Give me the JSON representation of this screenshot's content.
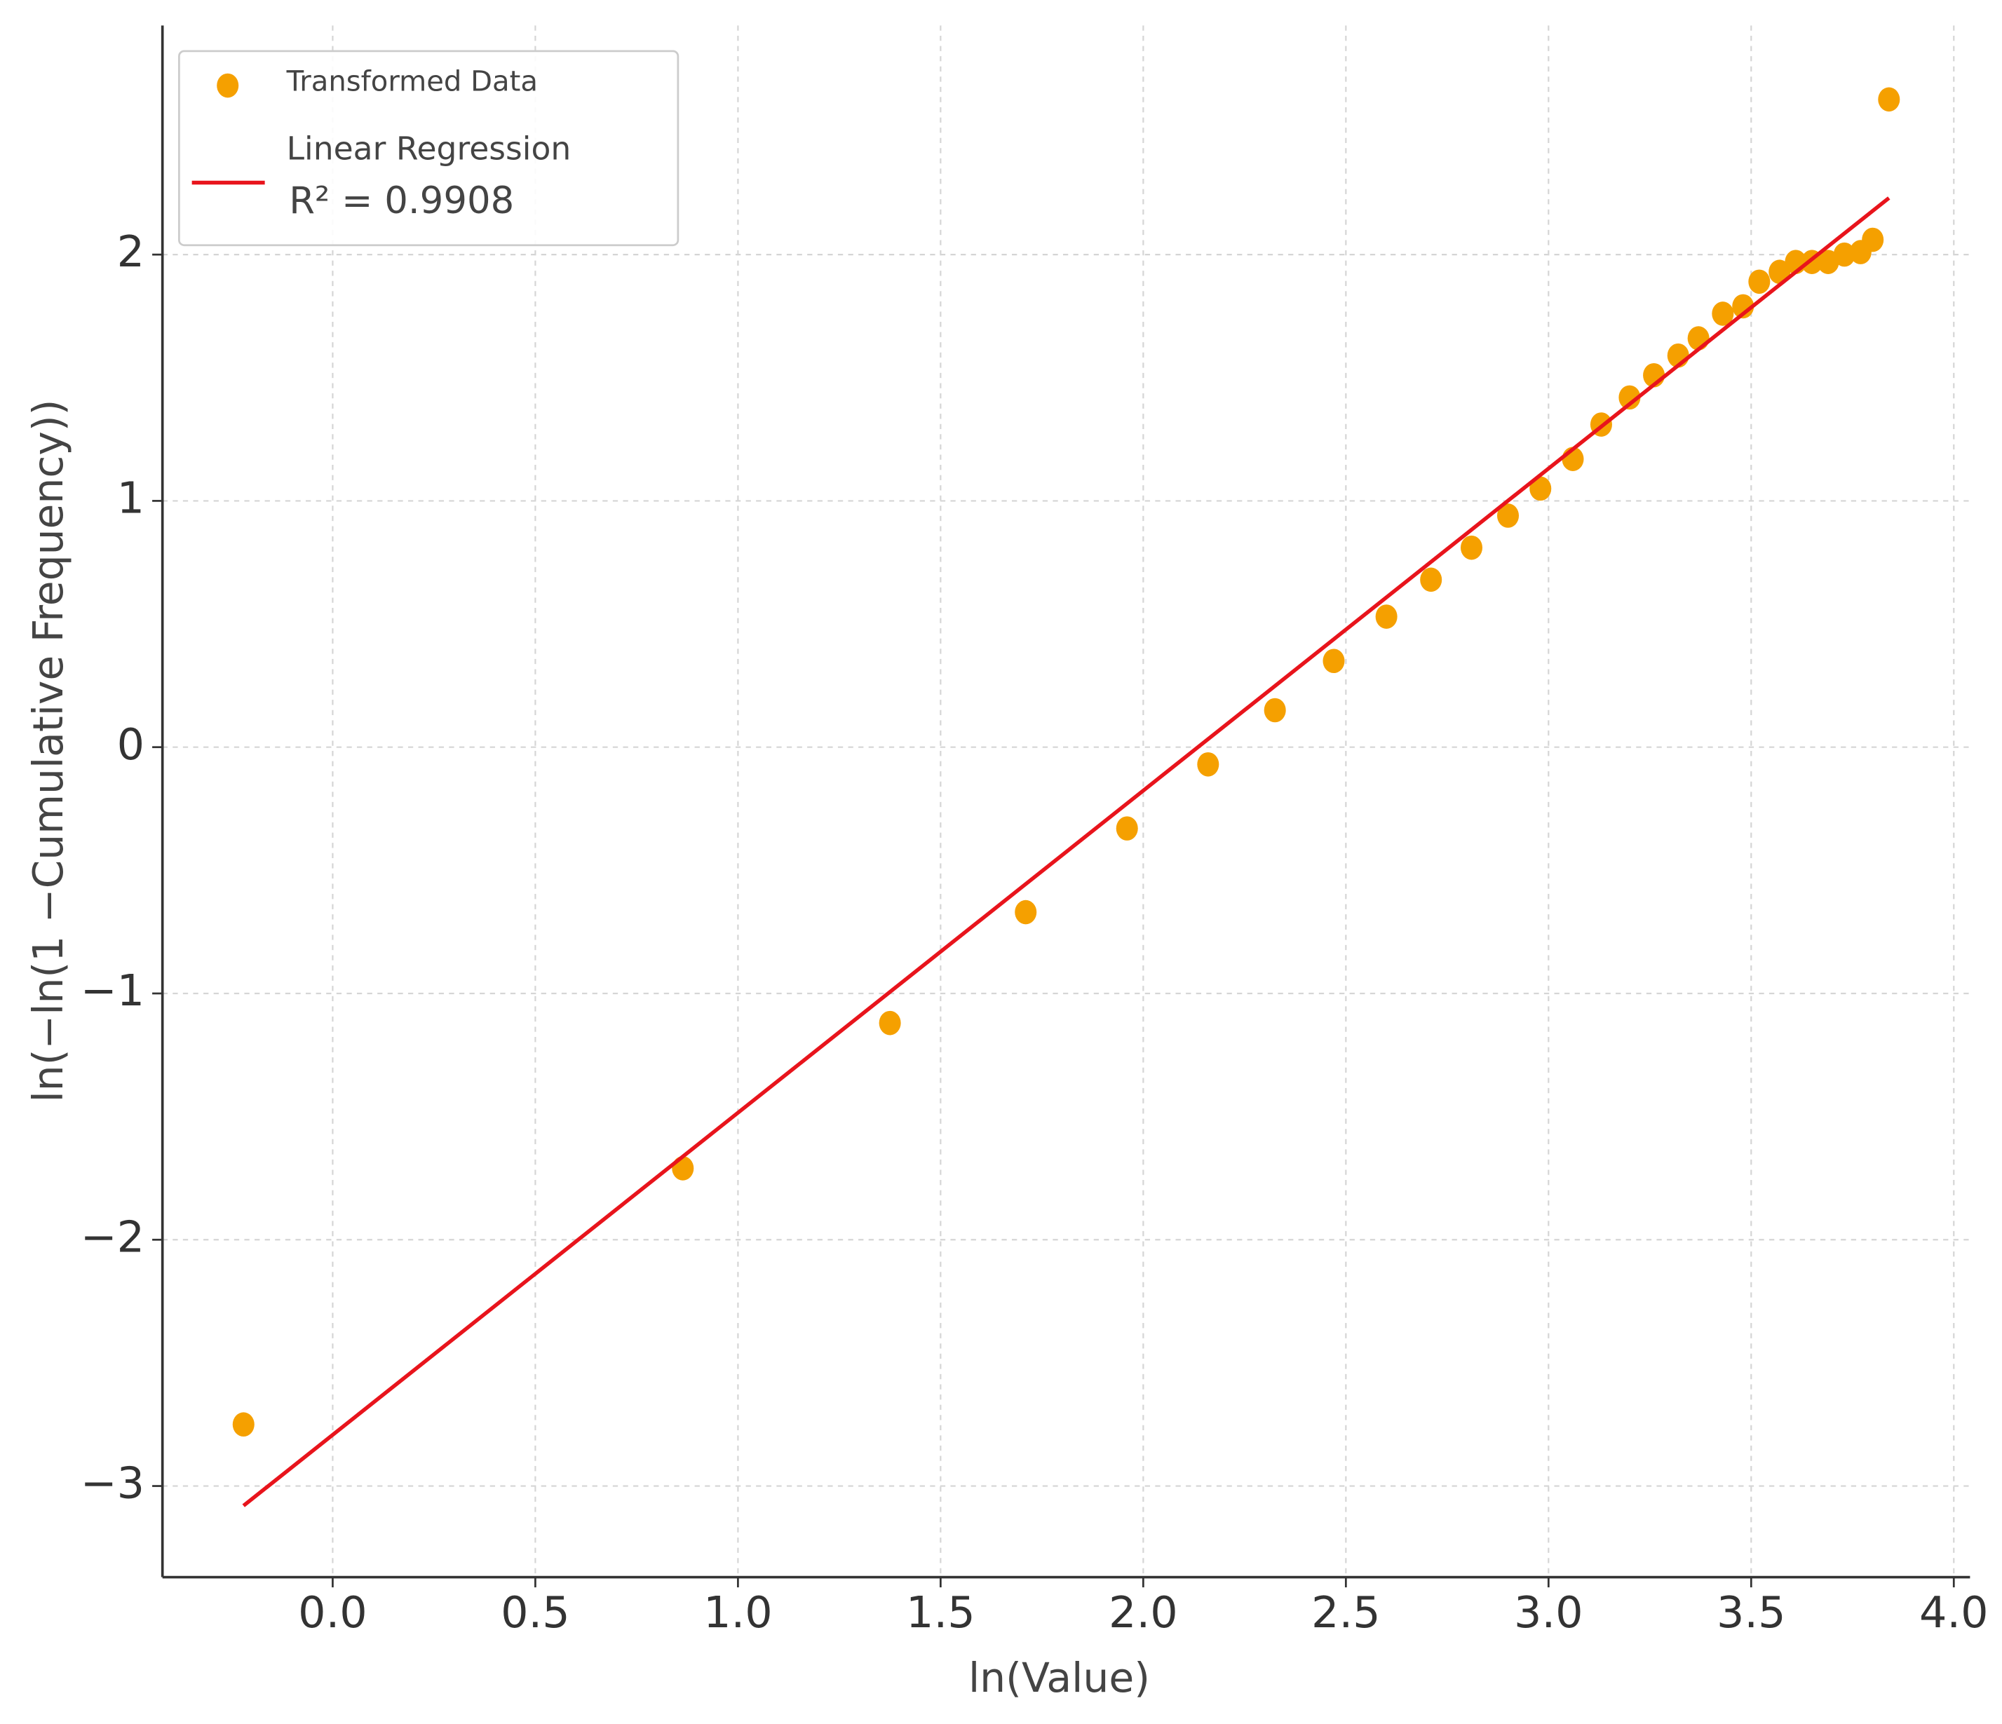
{
  "chart_data": {
    "type": "scatter",
    "x_label": "ln(Value)",
    "y_label": "ln(−ln(1 −Cumulative Frequency))",
    "annotation": "R² = 0.9908",
    "xlim": [
      -0.42,
      4.04
    ],
    "ylim": [
      -3.37,
      2.93
    ],
    "xticks": [
      {
        "value": 0,
        "label": "0.0"
      },
      {
        "value": 0.5,
        "label": "0.5"
      },
      {
        "value": 1,
        "label": "1.0"
      },
      {
        "value": 1.5,
        "label": "1.5"
      },
      {
        "value": 2,
        "label": "2.0"
      },
      {
        "value": 2.5,
        "label": "2.5"
      },
      {
        "value": 3,
        "label": "3.0"
      },
      {
        "value": 3.5,
        "label": "3.5"
      },
      {
        "value": 4,
        "label": "4.0"
      }
    ],
    "yticks": [
      {
        "value": -3,
        "label": "−3"
      },
      {
        "value": -2,
        "label": "−2"
      },
      {
        "value": -1,
        "label": "−1"
      },
      0,
      1,
      2
    ],
    "grid": true,
    "legend": "upper left",
    "series": [
      {
        "name": "Transformed Data",
        "color": "#f5a000",
        "mode": "markers",
        "x": [
          -0.22,
          0.864,
          1.375,
          1.71,
          1.96,
          2.16,
          2.325,
          2.47,
          2.6,
          2.71,
          2.81,
          2.9,
          2.98,
          3.06,
          3.13,
          3.2,
          3.26,
          3.32,
          3.37,
          3.43,
          3.48,
          3.52,
          3.57,
          3.61,
          3.65,
          3.69,
          3.73,
          3.77,
          3.8,
          3.84
        ],
        "values": [
          -2.75,
          -1.71,
          -1.12,
          -0.67,
          -0.33,
          -0.07,
          0.15,
          0.35,
          0.53,
          0.68,
          0.81,
          0.94,
          1.05,
          1.17,
          1.31,
          1.42,
          1.51,
          1.59,
          1.66,
          1.76,
          1.79,
          1.89,
          1.93,
          1.97,
          1.97,
          1.97,
          2.0,
          2.01,
          2.06,
          2.63
        ]
      },
      {
        "name": "Linear Regression",
        "color": "#e8141c",
        "mode": "line",
        "x": [
          -0.22,
          3.84
        ],
        "values": [
          -3.08,
          2.23
        ]
      }
    ]
  }
}
